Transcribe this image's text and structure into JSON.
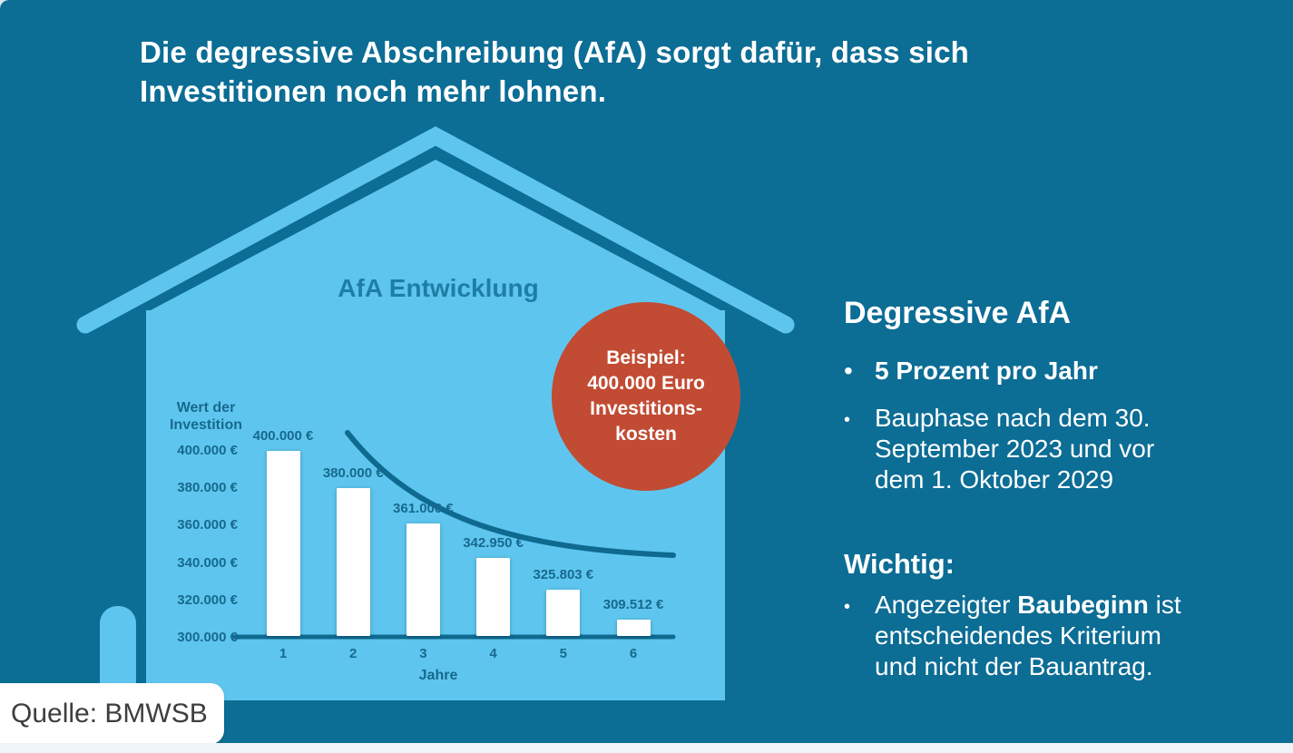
{
  "page": {
    "title_lines": [
      "Die degressive Abschreibung (AfA) sorgt dafür, dass sich",
      "Investitionen noch mehr lohnen."
    ],
    "source_label": "Quelle: BMWSB"
  },
  "badge": {
    "lines": [
      "Beispiel:",
      "400.000 Euro",
      "Investitions-",
      "kosten"
    ]
  },
  "right_panel": {
    "heading": "Degressive AfA",
    "bullet_char": "•",
    "bullet1_bold": "5 Prozent pro Jahr",
    "bullet2_lines": [
      "Bauphase nach dem 30.",
      "September 2023 und vor",
      "dem 1. Oktober 2029"
    ],
    "heading2": "Wichtig:",
    "bullet3_pre": "Angezeigter ",
    "bullet3_bold": "Baubeginn",
    "bullet3_post": " ist",
    "bullet3_line2": "entscheidendes Kriterium",
    "bullet3_line3": "und nicht der Bauantrag."
  },
  "chart_data": {
    "type": "bar",
    "title": "AfA Entwicklung",
    "ylabel_lines": [
      "Wert der",
      "Investition"
    ],
    "xlabel": "Jahre",
    "categories": [
      "1",
      "2",
      "3",
      "4",
      "5",
      "6"
    ],
    "values": [
      400000,
      380000,
      361000,
      342950,
      325803,
      309512
    ],
    "bar_labels": [
      "400.000 €",
      "380.000 €",
      "361.000 €",
      "342.950 €",
      "325.803 €",
      "309.512 €"
    ],
    "ytick_values": [
      400000,
      380000,
      360000,
      340000,
      320000,
      300000
    ],
    "ytick_labels": [
      "400.000 €",
      "380.000 €",
      "360.000 €",
      "340.000 €",
      "320.000 €",
      "300.000 €"
    ],
    "ylim": [
      300000,
      400000
    ],
    "grid": false,
    "legend": null,
    "overlay": "decreasing depreciation trend curve above bars",
    "annotation": "Beispiel: 400.000 Euro Investitionskosten",
    "bar_color": "#FFFFFF"
  },
  "colors": {
    "background": "#0C6D95",
    "house": "#5EC6EE",
    "accent_red": "#C24B33",
    "chart_text": "#17698E",
    "chart_line": "#0F6A90",
    "title_text": "#FFFFFF",
    "source_text": "#3E3E3D",
    "bottom_strip": "#EEF4F7"
  }
}
